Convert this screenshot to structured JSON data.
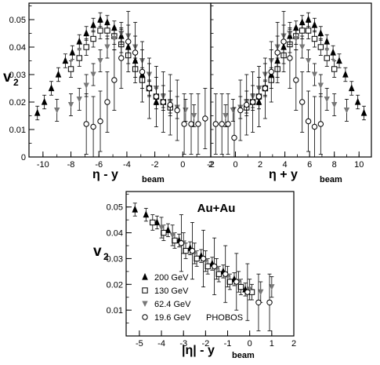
{
  "chart_data": [
    {
      "type": "scatter",
      "title": "",
      "xlabel": "η - y",
      "xlabel_sub": "beam",
      "ylabel": "v",
      "ylabel_sub": "2",
      "xlim": [
        -11,
        2
      ],
      "ylim": [
        0,
        0.056
      ],
      "xticks": [
        "-10",
        "-8",
        "-6",
        "-4",
        "-2",
        "0",
        "2"
      ],
      "yticks": [
        "0",
        "0.01",
        "0.02",
        "0.03",
        "0.04",
        "0.05"
      ],
      "series": [
        {
          "marker": "filled-star",
          "x": [
            -10.4,
            -9.9,
            -9.4,
            -8.9,
            -8.4,
            -7.9,
            -7.4,
            -6.9,
            -6.4,
            -5.9,
            -5.4,
            -4.9,
            -4.4,
            -3.9,
            -3.4,
            -2.9,
            -2.4,
            -1.9
          ],
          "y": [
            0.016,
            0.02,
            0.025,
            0.03,
            0.035,
            0.038,
            0.042,
            0.045,
            0.048,
            0.05,
            0.049,
            0.047,
            0.044,
            0.04,
            0.035,
            0.03,
            0.025,
            0.02
          ]
        },
        {
          "marker": "open-square",
          "x": [
            -8.0,
            -7.4,
            -6.9,
            -6.4,
            -5.9,
            -5.4,
            -4.9,
            -4.4,
            -3.9,
            -3.4,
            -2.9,
            -2.4,
            -1.9,
            -1.4,
            -0.9
          ],
          "y": [
            0.032,
            0.036,
            0.04,
            0.043,
            0.046,
            0.046,
            0.044,
            0.041,
            0.037,
            0.032,
            0.028,
            0.025,
            0.022,
            0.02,
            0.018
          ]
        },
        {
          "marker": "down-triangle",
          "x": [
            -9.0,
            -8.0,
            -7.4,
            -6.9,
            -6.4,
            -5.9,
            -5.4,
            -4.9,
            -4.4,
            -3.9,
            -3.4,
            -2.9,
            -2.4,
            -1.9,
            -1.4,
            -0.9,
            -0.4,
            0.2,
            0.8
          ],
          "y": [
            0.017,
            0.019,
            0.021,
            0.026,
            0.03,
            0.035,
            0.04,
            0.043,
            0.045,
            0.044,
            0.04,
            0.035,
            0.03,
            0.025,
            0.022,
            0.02,
            0.018,
            0.017,
            0.015
          ]
        },
        {
          "marker": "open-circle",
          "x": [
            -6.9,
            -6.4,
            -5.9,
            -5.4,
            -4.9,
            -4.4,
            -3.9,
            -3.4,
            -2.9,
            -2.4,
            -1.9,
            -1.4,
            -0.9,
            -0.4,
            0.1,
            0.6,
            1.1,
            1.6
          ],
          "y": [
            0.012,
            0.011,
            0.013,
            0.02,
            0.028,
            0.036,
            0.042,
            0.038,
            0.031,
            0.025,
            0.022,
            0.02,
            0.019,
            0.017,
            0.012,
            0.012,
            0.012,
            0.014
          ]
        }
      ]
    },
    {
      "type": "scatter",
      "title": "",
      "xlabel": "η + y",
      "xlabel_sub": "beam",
      "ylabel": "",
      "xlim": [
        -2,
        11
      ],
      "ylim": [
        0,
        0.056
      ],
      "xticks": [
        "-2",
        "0",
        "2",
        "4",
        "6",
        "8",
        "10"
      ],
      "yticks": [],
      "series": [
        {
          "marker": "filled-star",
          "x": [
            1.9,
            2.4,
            2.9,
            3.4,
            3.9,
            4.4,
            4.9,
            5.4,
            5.9,
            6.4,
            6.9,
            7.4,
            7.9,
            8.4,
            8.9,
            9.4,
            9.9,
            10.4
          ],
          "y": [
            0.02,
            0.025,
            0.03,
            0.035,
            0.04,
            0.044,
            0.047,
            0.049,
            0.05,
            0.048,
            0.045,
            0.042,
            0.038,
            0.035,
            0.03,
            0.025,
            0.02,
            0.016
          ]
        },
        {
          "marker": "open-square",
          "x": [
            0.9,
            1.4,
            1.9,
            2.4,
            2.9,
            3.4,
            3.9,
            4.4,
            4.9,
            5.4,
            5.9,
            6.4,
            6.9,
            7.4,
            8.0
          ],
          "y": [
            0.018,
            0.02,
            0.022,
            0.025,
            0.028,
            0.032,
            0.037,
            0.041,
            0.044,
            0.046,
            0.046,
            0.043,
            0.04,
            0.036,
            0.032
          ]
        },
        {
          "marker": "down-triangle",
          "x": [
            -0.8,
            -0.2,
            0.4,
            0.9,
            1.4,
            1.9,
            2.4,
            2.9,
            3.4,
            3.9,
            4.4,
            4.9,
            5.4,
            5.9,
            6.4,
            6.9,
            7.4,
            8.0,
            9.0
          ],
          "y": [
            0.015,
            0.017,
            0.018,
            0.02,
            0.022,
            0.025,
            0.03,
            0.035,
            0.04,
            0.044,
            0.045,
            0.043,
            0.04,
            0.035,
            0.03,
            0.026,
            0.021,
            0.019,
            0.017
          ]
        },
        {
          "marker": "open-circle",
          "x": [
            -1.6,
            -1.1,
            -0.6,
            -0.1,
            0.4,
            0.9,
            1.4,
            1.9,
            2.4,
            2.9,
            3.4,
            3.9,
            4.4,
            4.9,
            5.4,
            5.9,
            6.4,
            6.9
          ],
          "y": [
            0.012,
            0.012,
            0.012,
            0.007,
            0.017,
            0.019,
            0.02,
            0.022,
            0.025,
            0.031,
            0.038,
            0.042,
            0.036,
            0.028,
            0.02,
            0.013,
            0.011,
            0.012
          ]
        }
      ]
    },
    {
      "type": "scatter",
      "title": "Au+Au",
      "xlabel": "|η| - y",
      "xlabel_sub": "beam",
      "ylabel": "v",
      "ylabel_sub": "2",
      "xlim": [
        -5.6,
        2
      ],
      "ylim": [
        0,
        0.056
      ],
      "xticks": [
        "-5",
        "-4",
        "-3",
        "-2",
        "-1",
        "0",
        "1",
        "2"
      ],
      "yticks": [
        "0.01",
        "0.02",
        "0.03",
        "0.04",
        "0.05"
      ],
      "legend_extra": "PHOBOS",
      "series": [
        {
          "name": "200 GeV",
          "marker": "filled-star",
          "x": [
            -5.2,
            -4.7,
            -4.2,
            -3.7,
            -3.2,
            -2.7,
            -2.2,
            -1.7,
            -1.2,
            -0.7,
            -0.2
          ],
          "y": [
            0.049,
            0.047,
            0.044,
            0.041,
            0.037,
            0.034,
            0.031,
            0.028,
            0.025,
            0.022,
            0.018
          ]
        },
        {
          "name": "130 GeV",
          "marker": "open-square",
          "x": [
            -4.4,
            -3.9,
            -3.4,
            -2.9,
            -2.4,
            -1.9,
            -1.4,
            -0.9,
            -0.4,
            0.1
          ],
          "y": [
            0.044,
            0.04,
            0.037,
            0.033,
            0.03,
            0.027,
            0.024,
            0.021,
            0.019,
            0.017
          ]
        },
        {
          "name": "62.4 GeV",
          "marker": "down-triangle",
          "x": [
            -4.0,
            -3.5,
            -3.0,
            -2.5,
            -2.0,
            -1.5,
            -1.0,
            -0.5,
            0.0,
            0.5,
            1.0
          ],
          "y": [
            0.042,
            0.039,
            0.036,
            0.032,
            0.029,
            0.026,
            0.023,
            0.021,
            0.018,
            0.017,
            0.019
          ]
        },
        {
          "name": "19.6 GeV",
          "marker": "open-circle",
          "x": [
            -3.1,
            -2.6,
            -2.1,
            -1.6,
            -1.1,
            -0.6,
            -0.1,
            0.4,
            0.9
          ],
          "y": [
            0.036,
            0.033,
            0.03,
            0.027,
            0.024,
            0.021,
            0.017,
            0.013,
            0.013
          ]
        }
      ]
    }
  ]
}
